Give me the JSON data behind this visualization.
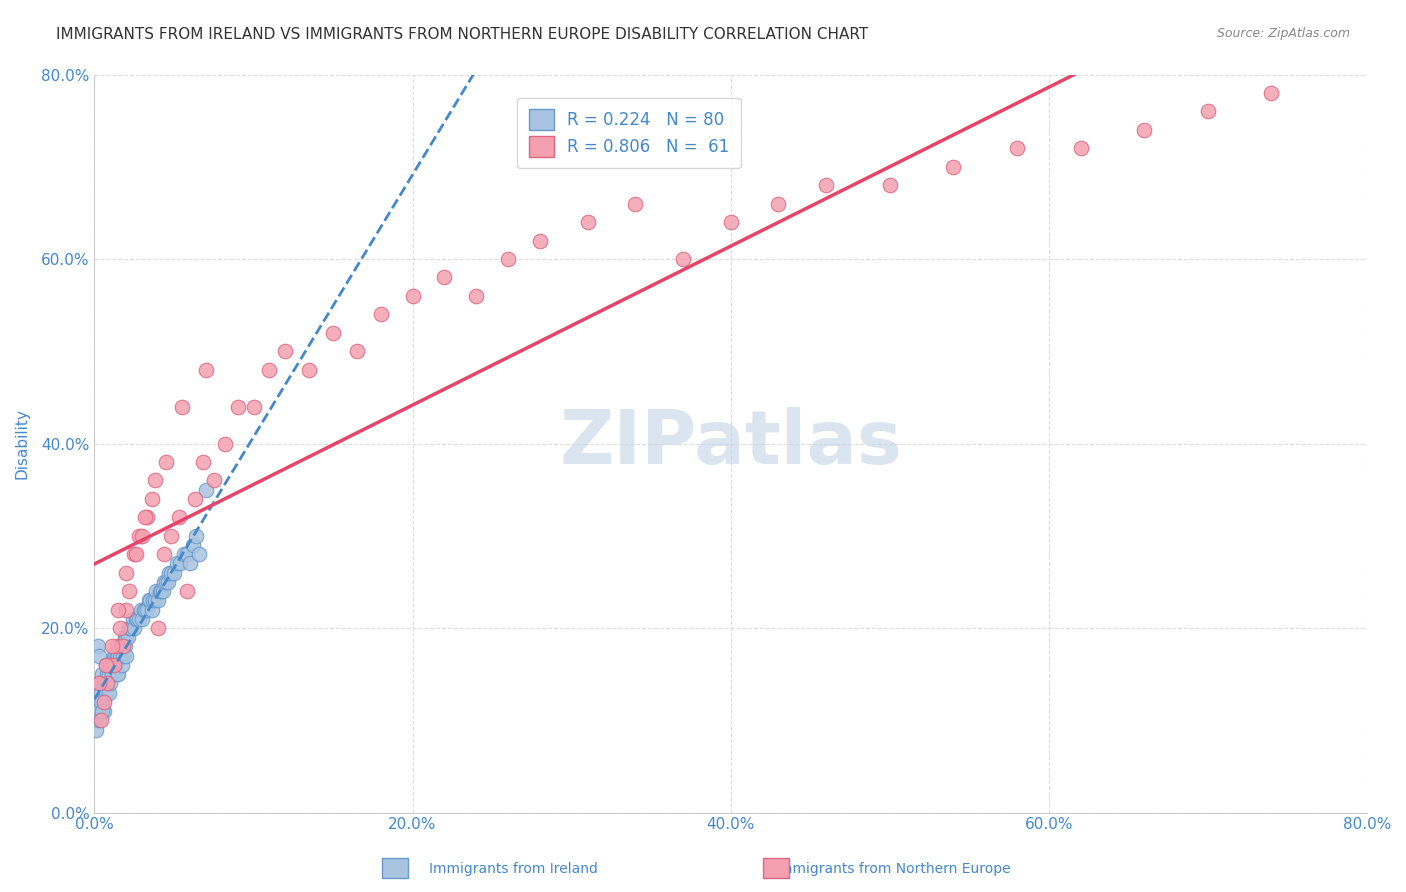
{
  "title": "IMMIGRANTS FROM IRELAND VS IMMIGRANTS FROM NORTHERN EUROPE DISABILITY CORRELATION CHART",
  "source": "Source: ZipAtlas.com",
  "ylabel": "Disability",
  "xlim": [
    0.0,
    0.8
  ],
  "ylim": [
    0.0,
    0.8
  ],
  "xtick_labels": [
    "0.0%",
    "20.0%",
    "40.0%",
    "60.0%",
    "80.0%"
  ],
  "ytick_labels": [
    "0.0%",
    "20.0%",
    "40.0%",
    "60.0%",
    "80.0%"
  ],
  "xtick_values": [
    0.0,
    0.2,
    0.4,
    0.6,
    0.8
  ],
  "ytick_values": [
    0.0,
    0.2,
    0.4,
    0.6,
    0.8
  ],
  "ireland_color": "#a8c4e0",
  "ireland_edge_color": "#6699cc",
  "northern_europe_color": "#f4a0b0",
  "northern_europe_edge_color": "#dd6680",
  "ireland_R": 0.224,
  "ireland_N": 80,
  "northern_europe_R": 0.806,
  "northern_europe_N": 61,
  "ireland_trendline_color": "#4488cc",
  "northern_europe_trendline_color": "#e8446a",
  "watermark_color": "#c8d8e8",
  "legend_text_color": "#4488cc",
  "title_color": "#333333",
  "axis_label_color": "#4488cc",
  "background_color": "#ffffff",
  "grid_color": "#dddddd",
  "ireland_scatter_x": [
    0.002,
    0.003,
    0.003,
    0.004,
    0.005,
    0.005,
    0.006,
    0.006,
    0.007,
    0.007,
    0.008,
    0.008,
    0.009,
    0.009,
    0.01,
    0.01,
    0.011,
    0.011,
    0.012,
    0.012,
    0.013,
    0.013,
    0.014,
    0.014,
    0.015,
    0.015,
    0.016,
    0.016,
    0.017,
    0.017,
    0.018,
    0.018,
    0.019,
    0.019,
    0.02,
    0.02,
    0.021,
    0.022,
    0.023,
    0.024,
    0.025,
    0.026,
    0.027,
    0.028,
    0.029,
    0.03,
    0.031,
    0.032,
    0.033,
    0.034,
    0.035,
    0.036,
    0.037,
    0.038,
    0.039,
    0.04,
    0.041,
    0.042,
    0.043,
    0.044,
    0.045,
    0.046,
    0.047,
    0.048,
    0.05,
    0.052,
    0.054,
    0.056,
    0.058,
    0.06,
    0.062,
    0.064,
    0.066,
    0.07,
    0.001,
    0.001,
    0.002,
    0.003,
    0.004,
    0.005
  ],
  "ireland_scatter_y": [
    0.18,
    0.17,
    0.14,
    0.13,
    0.15,
    0.12,
    0.14,
    0.11,
    0.16,
    0.13,
    0.14,
    0.15,
    0.15,
    0.13,
    0.16,
    0.14,
    0.16,
    0.15,
    0.17,
    0.16,
    0.17,
    0.16,
    0.15,
    0.17,
    0.17,
    0.15,
    0.18,
    0.17,
    0.16,
    0.18,
    0.18,
    0.17,
    0.19,
    0.18,
    0.19,
    0.17,
    0.19,
    0.2,
    0.2,
    0.21,
    0.2,
    0.21,
    0.21,
    0.21,
    0.22,
    0.21,
    0.22,
    0.22,
    0.22,
    0.23,
    0.23,
    0.22,
    0.23,
    0.23,
    0.24,
    0.23,
    0.24,
    0.24,
    0.24,
    0.25,
    0.25,
    0.25,
    0.26,
    0.26,
    0.26,
    0.27,
    0.27,
    0.28,
    0.28,
    0.27,
    0.29,
    0.3,
    0.28,
    0.35,
    0.1,
    0.09,
    0.11,
    0.1,
    0.12,
    0.11
  ],
  "northern_europe_scatter_x": [
    0.004,
    0.006,
    0.008,
    0.01,
    0.012,
    0.014,
    0.016,
    0.018,
    0.02,
    0.022,
    0.025,
    0.028,
    0.03,
    0.033,
    0.036,
    0.04,
    0.044,
    0.048,
    0.053,
    0.058,
    0.063,
    0.068,
    0.075,
    0.082,
    0.09,
    0.1,
    0.11,
    0.12,
    0.135,
    0.15,
    0.165,
    0.18,
    0.2,
    0.22,
    0.24,
    0.26,
    0.28,
    0.31,
    0.34,
    0.37,
    0.4,
    0.43,
    0.46,
    0.5,
    0.54,
    0.58,
    0.62,
    0.66,
    0.7,
    0.74,
    0.003,
    0.007,
    0.011,
    0.015,
    0.02,
    0.026,
    0.032,
    0.038,
    0.045,
    0.055,
    0.07
  ],
  "northern_europe_scatter_y": [
    0.1,
    0.12,
    0.14,
    0.16,
    0.16,
    0.18,
    0.2,
    0.18,
    0.22,
    0.24,
    0.28,
    0.3,
    0.3,
    0.32,
    0.34,
    0.2,
    0.28,
    0.3,
    0.32,
    0.24,
    0.34,
    0.38,
    0.36,
    0.4,
    0.44,
    0.44,
    0.48,
    0.5,
    0.48,
    0.52,
    0.5,
    0.54,
    0.56,
    0.58,
    0.56,
    0.6,
    0.62,
    0.64,
    0.66,
    0.6,
    0.64,
    0.66,
    0.68,
    0.68,
    0.7,
    0.72,
    0.72,
    0.74,
    0.76,
    0.78,
    0.14,
    0.16,
    0.18,
    0.22,
    0.26,
    0.28,
    0.32,
    0.36,
    0.38,
    0.44,
    0.48
  ]
}
